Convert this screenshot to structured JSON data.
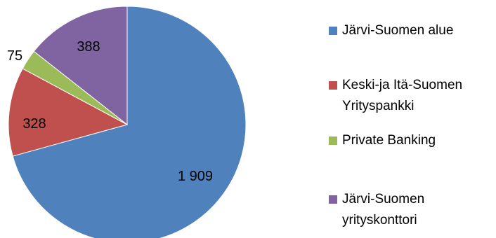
{
  "chart_data": {
    "type": "pie",
    "title": "",
    "series": [
      {
        "name": "Järvi-Suomen alue",
        "value": 1909,
        "label": "1 909",
        "color": "#4f81bd"
      },
      {
        "name": "Keski-ja Itä-Suomen Yrityspankki",
        "value": 328,
        "label": "328",
        "color": "#c0504d"
      },
      {
        "name": "Private Banking",
        "value": 75,
        "label": "75",
        "color": "#9bbb59"
      },
      {
        "name": "Järvi-Suomen yrityskonttori",
        "value": 388,
        "label": "388",
        "color": "#8064a2"
      }
    ],
    "legend": {
      "placement": "right",
      "items": [
        {
          "lines": [
            "Järvi-Suomen alue"
          ]
        },
        {
          "lines": [
            "Keski-ja Itä-Suomen",
            "Yrityspankki"
          ]
        },
        {
          "lines": [
            "Private Banking"
          ]
        },
        {
          "lines": [
            "Järvi-Suomen",
            "yrityskonttori"
          ]
        }
      ]
    }
  }
}
